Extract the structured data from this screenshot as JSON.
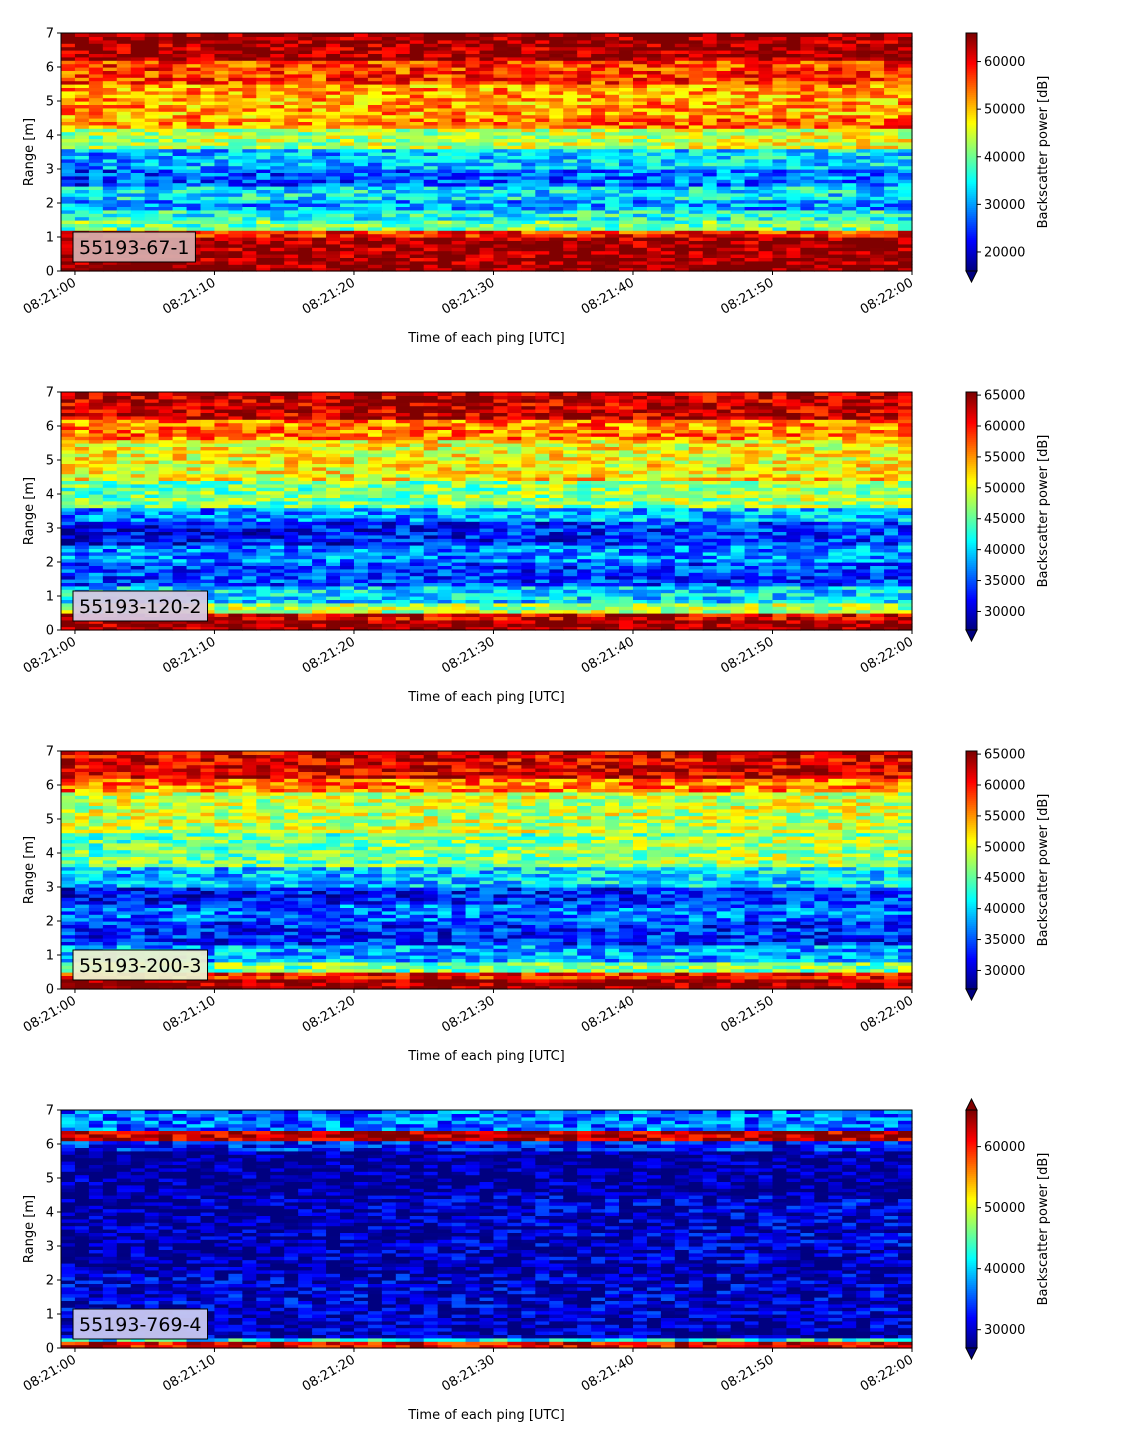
{
  "chart_data": [
    {
      "type": "heatmap",
      "label": "55193-67-1",
      "xlabel": "Time of each ping [UTC]",
      "ylabel": "Range [m]",
      "x_ticks": [
        "08:21:00",
        "08:21:10",
        "08:21:20",
        "08:21:30",
        "08:21:40",
        "08:21:50",
        "08:22:00"
      ],
      "xlim": [
        "08:20:59",
        "08:22:00"
      ],
      "ylim": [
        0,
        7
      ],
      "y_ticks": [
        0,
        1,
        2,
        3,
        4,
        5,
        6,
        7
      ],
      "colorbar_label": "Backscatter power [dB]",
      "colorbar_ticks": [
        20000,
        30000,
        40000,
        50000,
        60000
      ],
      "colorbar_range": [
        16000,
        66000
      ],
      "colorbar_extend": "min",
      "colormap": "jet",
      "bands": [
        {
          "range": [
            0.0,
            0.25
          ],
          "value": 66000
        },
        {
          "range": [
            0.25,
            1.0
          ],
          "value": 65000
        },
        {
          "range": [
            1.0,
            1.2
          ],
          "value": 58000
        },
        {
          "range": [
            1.2,
            1.5
          ],
          "value": 40000
        },
        {
          "range": [
            1.5,
            1.8
          ],
          "value": 36000
        },
        {
          "range": [
            1.8,
            2.1
          ],
          "value": 30000
        },
        {
          "range": [
            2.1,
            2.5
          ],
          "value": 34000
        },
        {
          "range": [
            2.5,
            3.0
          ],
          "value": 25000
        },
        {
          "range": [
            3.0,
            3.6
          ],
          "value": 30000
        },
        {
          "range": [
            3.6,
            4.2
          ],
          "value": 42000
        },
        {
          "range": [
            4.2,
            5.5
          ],
          "value": 52000
        },
        {
          "range": [
            5.5,
            6.2
          ],
          "value": 57000
        },
        {
          "range": [
            6.2,
            7.0
          ],
          "value": 65000
        }
      ]
    },
    {
      "type": "heatmap",
      "label": "55193-120-2",
      "xlabel": "Time of each ping [UTC]",
      "ylabel": "Range [m]",
      "x_ticks": [
        "08:21:00",
        "08:21:10",
        "08:21:20",
        "08:21:30",
        "08:21:40",
        "08:21:50",
        "08:22:00"
      ],
      "xlim": [
        "08:20:59",
        "08:22:00"
      ],
      "ylim": [
        0,
        7
      ],
      "y_ticks": [
        0,
        1,
        2,
        3,
        4,
        5,
        6,
        7
      ],
      "colorbar_label": "Backscatter power [dB]",
      "colorbar_ticks": [
        30000,
        35000,
        40000,
        45000,
        50000,
        55000,
        60000,
        65000
      ],
      "colorbar_range": [
        27000,
        65500
      ],
      "colorbar_extend": "min",
      "colormap": "jet",
      "bands": [
        {
          "range": [
            0.0,
            0.3
          ],
          "value": 65000
        },
        {
          "range": [
            0.3,
            0.55
          ],
          "value": 62000
        },
        {
          "range": [
            0.55,
            0.8
          ],
          "value": 48000
        },
        {
          "range": [
            0.8,
            1.3
          ],
          "value": 40000
        },
        {
          "range": [
            1.3,
            2.0
          ],
          "value": 34000
        },
        {
          "range": [
            2.0,
            2.5
          ],
          "value": 37000
        },
        {
          "range": [
            2.5,
            3.2
          ],
          "value": 31000
        },
        {
          "range": [
            3.2,
            3.6
          ],
          "value": 36000
        },
        {
          "range": [
            3.6,
            4.4
          ],
          "value": 45000
        },
        {
          "range": [
            4.4,
            5.6
          ],
          "value": 51000
        },
        {
          "range": [
            5.6,
            6.2
          ],
          "value": 56000
        },
        {
          "range": [
            6.2,
            7.0
          ],
          "value": 63000
        }
      ]
    },
    {
      "type": "heatmap",
      "label": "55193-200-3",
      "xlabel": "Time of each ping [UTC]",
      "ylabel": "Range [m]",
      "x_ticks": [
        "08:21:00",
        "08:21:10",
        "08:21:20",
        "08:21:30",
        "08:21:40",
        "08:21:50",
        "08:22:00"
      ],
      "xlim": [
        "08:20:59",
        "08:22:00"
      ],
      "ylim": [
        0,
        7
      ],
      "y_ticks": [
        0,
        1,
        2,
        3,
        4,
        5,
        6,
        7
      ],
      "colorbar_label": "Backscatter power [dB]",
      "colorbar_ticks": [
        30000,
        35000,
        40000,
        45000,
        50000,
        55000,
        60000,
        65000
      ],
      "colorbar_range": [
        27000,
        65500
      ],
      "colorbar_extend": "min",
      "colormap": "jet",
      "bands": [
        {
          "range": [
            0.0,
            0.3
          ],
          "value": 65000
        },
        {
          "range": [
            0.3,
            0.55
          ],
          "value": 60000
        },
        {
          "range": [
            0.55,
            0.8
          ],
          "value": 46000
        },
        {
          "range": [
            0.8,
            1.3
          ],
          "value": 38000
        },
        {
          "range": [
            1.3,
            2.0
          ],
          "value": 33000
        },
        {
          "range": [
            2.0,
            2.5
          ],
          "value": 36000
        },
        {
          "range": [
            2.5,
            3.0
          ],
          "value": 31000
        },
        {
          "range": [
            3.0,
            3.6
          ],
          "value": 38000
        },
        {
          "range": [
            3.6,
            4.6
          ],
          "value": 45000
        },
        {
          "range": [
            4.6,
            5.8
          ],
          "value": 49000
        },
        {
          "range": [
            5.8,
            6.2
          ],
          "value": 56000
        },
        {
          "range": [
            6.2,
            7.0
          ],
          "value": 62000
        }
      ]
    },
    {
      "type": "heatmap",
      "label": "55193-769-4",
      "xlabel": "Time of each ping [UTC]",
      "ylabel": "Range [m]",
      "x_ticks": [
        "08:21:00",
        "08:21:10",
        "08:21:20",
        "08:21:30",
        "08:21:40",
        "08:21:50",
        "08:22:00"
      ],
      "xlim": [
        "08:20:59",
        "08:22:00"
      ],
      "ylim": [
        0,
        7
      ],
      "y_ticks": [
        0,
        1,
        2,
        3,
        4,
        5,
        6,
        7
      ],
      "colorbar_label": "Backscatter power [dB]",
      "colorbar_ticks": [
        30000,
        40000,
        50000,
        60000
      ],
      "colorbar_range": [
        27000,
        66000
      ],
      "colorbar_extend": "both",
      "colormap": "jet",
      "bands": [
        {
          "range": [
            0.0,
            0.2
          ],
          "value": 62000
        },
        {
          "range": [
            0.2,
            0.35
          ],
          "value": 42000
        },
        {
          "range": [
            0.35,
            1.0
          ],
          "value": 29000
        },
        {
          "range": [
            1.0,
            2.2
          ],
          "value": 30000
        },
        {
          "range": [
            2.2,
            5.8
          ],
          "value": 27500
        },
        {
          "range": [
            5.8,
            6.1
          ],
          "value": 33000
        },
        {
          "range": [
            6.1,
            6.45
          ],
          "value": 64000
        },
        {
          "range": [
            6.45,
            7.0
          ],
          "value": 36000
        }
      ]
    }
  ]
}
